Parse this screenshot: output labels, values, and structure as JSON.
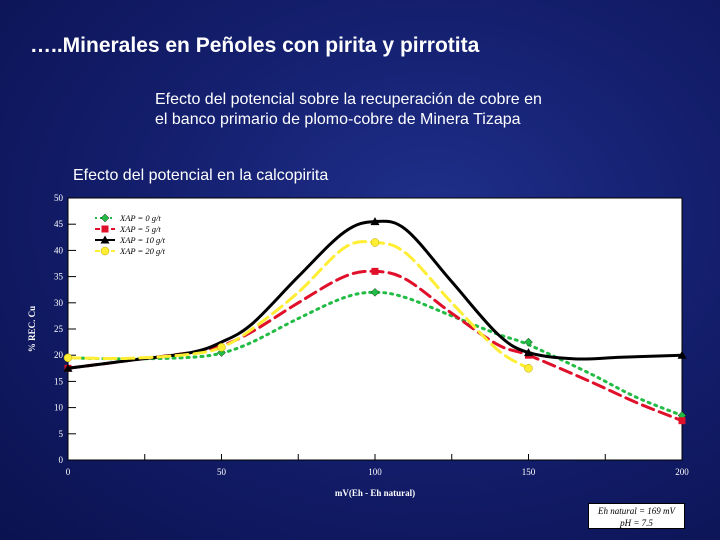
{
  "slide": {
    "title": "…..Minerales en Peñoles con pirita y pirrotita",
    "subtitle_lines": [
      "Efecto del potencial sobre la recuperación de cobre en",
      "el banco primario de plomo-cobre de Minera Tizapa"
    ]
  },
  "note": {
    "line1": "Eh natural = 169 mV",
    "line2": "pH = 7.5"
  },
  "chart_data": {
    "type": "line",
    "title": "Efecto del potencial en la calcopirita",
    "xlabel": "mV(Eh - Eh natural)",
    "ylabel": "% REC. Cu",
    "xlim": [
      0,
      200
    ],
    "ylim": [
      0,
      50
    ],
    "x_ticks": [
      0,
      50,
      100,
      150,
      200
    ],
    "y_ticks": [
      0,
      5,
      10,
      15,
      20,
      25,
      30,
      35,
      40,
      45,
      50
    ],
    "grid": false,
    "legend_position": "top-left",
    "series": [
      {
        "name": "XAP = 0 g/t",
        "color": "#22bb44",
        "marker": "diamond",
        "dash": "dotted",
        "points": [
          [
            0,
            19.5
          ],
          [
            50,
            20.5
          ],
          [
            100,
            32
          ],
          [
            150,
            22.5
          ],
          [
            200,
            8.5
          ]
        ],
        "curve": [
          [
            0,
            19.5
          ],
          [
            20,
            19.3
          ],
          [
            40,
            19.6
          ],
          [
            50,
            20.4
          ],
          [
            60,
            22.5
          ],
          [
            75,
            27
          ],
          [
            90,
            31
          ],
          [
            100,
            32
          ],
          [
            110,
            31
          ],
          [
            125,
            27.5
          ],
          [
            140,
            24
          ],
          [
            150,
            22
          ],
          [
            170,
            16.5
          ],
          [
            185,
            12
          ],
          [
            200,
            8.5
          ]
        ]
      },
      {
        "name": "XAP = 5 g/t",
        "color": "#e0102a",
        "marker": "square",
        "dash": "dashed",
        "points": [
          [
            0,
            17.5
          ],
          [
            100,
            36
          ],
          [
            150,
            20
          ],
          [
            200,
            7.5
          ]
        ],
        "curve": [
          [
            0,
            17.5
          ],
          [
            20,
            19
          ],
          [
            40,
            20.5
          ],
          [
            50,
            21.8
          ],
          [
            60,
            24.5
          ],
          [
            75,
            30
          ],
          [
            90,
            35
          ],
          [
            100,
            36
          ],
          [
            110,
            34.5
          ],
          [
            125,
            28
          ],
          [
            140,
            22
          ],
          [
            150,
            20
          ],
          [
            170,
            15
          ],
          [
            185,
            11
          ],
          [
            200,
            7.5
          ]
        ]
      },
      {
        "name": "XAP = 10 g/t",
        "color": "#000000",
        "marker": "triangle",
        "dash": "solid",
        "points": [
          [
            0,
            17.5
          ],
          [
            100,
            45.5
          ],
          [
            150,
            20.5
          ],
          [
            200,
            20
          ]
        ],
        "curve": [
          [
            0,
            17.5
          ],
          [
            20,
            19
          ],
          [
            40,
            20.5
          ],
          [
            50,
            22.5
          ],
          [
            60,
            26
          ],
          [
            75,
            35
          ],
          [
            90,
            43.5
          ],
          [
            100,
            45.5
          ],
          [
            110,
            44
          ],
          [
            125,
            34
          ],
          [
            140,
            24
          ],
          [
            150,
            20.5
          ],
          [
            165,
            19.3
          ],
          [
            180,
            19.6
          ],
          [
            200,
            20
          ]
        ]
      },
      {
        "name": "XAP = 20 g/t",
        "color": "#ffee33",
        "marker": "circle",
        "dash": "dashed",
        "points": [
          [
            0,
            19.5
          ],
          [
            50,
            21.5
          ],
          [
            100,
            41.5
          ],
          [
            150,
            17.5
          ]
        ],
        "curve": [
          [
            0,
            19.5
          ],
          [
            20,
            19.4
          ],
          [
            40,
            20.2
          ],
          [
            50,
            21.5
          ],
          [
            60,
            25
          ],
          [
            75,
            32
          ],
          [
            90,
            40.5
          ],
          [
            100,
            41.5
          ],
          [
            110,
            39.5
          ],
          [
            125,
            30
          ],
          [
            140,
            21
          ],
          [
            150,
            17.5
          ]
        ]
      }
    ]
  }
}
